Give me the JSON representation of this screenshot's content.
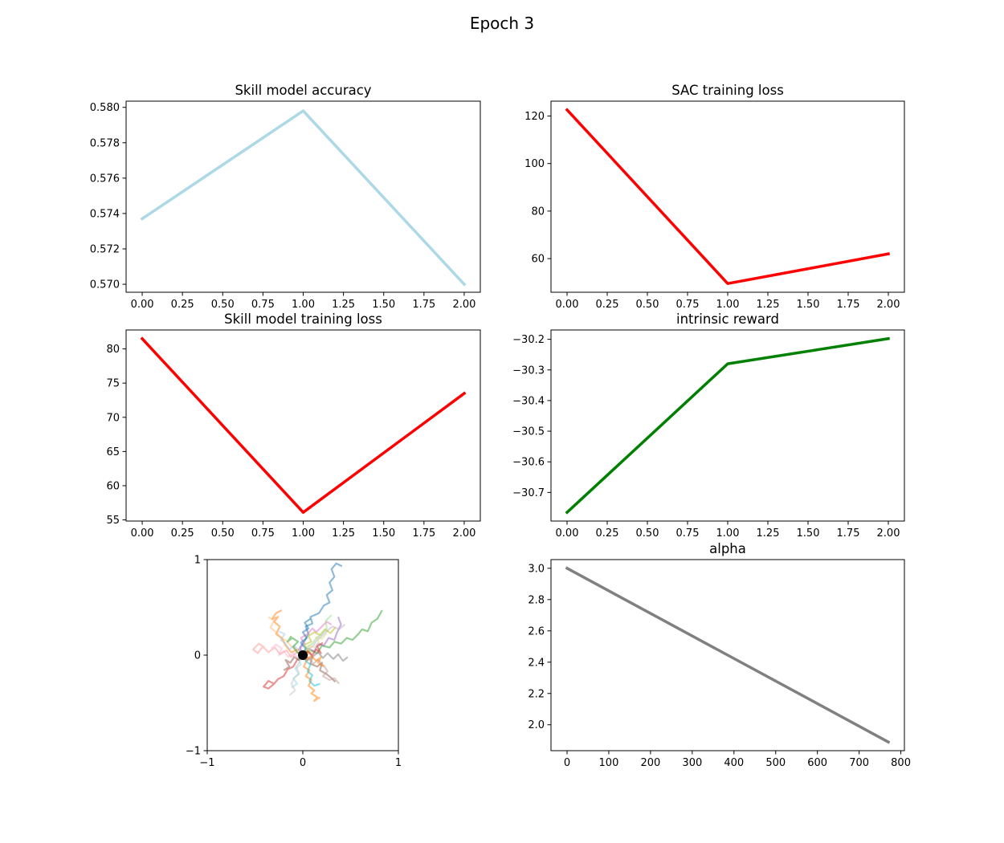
{
  "figure": {
    "suptitle": "Epoch 3"
  },
  "chart_data": [
    {
      "id": "skill-acc",
      "type": "line",
      "title": "Skill model accuracy",
      "xlabel": "",
      "ylabel": "",
      "x": [
        0,
        1,
        2
      ],
      "series": [
        {
          "values": [
            0.5737,
            0.5798,
            0.57
          ],
          "color": "#add8e6"
        }
      ],
      "xlim": [
        -0.1,
        2.1
      ],
      "ylim": [
        0.56955,
        0.58035
      ],
      "xticks": [
        0,
        0.25,
        0.5,
        0.75,
        1.0,
        1.25,
        1.5,
        1.75,
        2.0
      ],
      "xtick_labels": [
        "0.00",
        "0.25",
        "0.50",
        "0.75",
        "1.00",
        "1.25",
        "1.50",
        "1.75",
        "2.00"
      ],
      "yticks": [
        0.57,
        0.572,
        0.574,
        0.576,
        0.578,
        0.58
      ],
      "ytick_labels": [
        "0.570",
        "0.572",
        "0.574",
        "0.576",
        "0.578",
        "0.580"
      ],
      "grid": false
    },
    {
      "id": "sac-loss",
      "type": "line",
      "title": "SAC training loss",
      "xlabel": "",
      "ylabel": "",
      "x": [
        0,
        1,
        2
      ],
      "series": [
        {
          "values": [
            122.6,
            49.5,
            62.0
          ],
          "color": "#ff0000"
        }
      ],
      "xlim": [
        -0.1,
        2.1
      ],
      "ylim": [
        45.85,
        126.25
      ],
      "xticks": [
        0,
        0.25,
        0.5,
        0.75,
        1.0,
        1.25,
        1.5,
        1.75,
        2.0
      ],
      "xtick_labels": [
        "0.00",
        "0.25",
        "0.50",
        "0.75",
        "1.00",
        "1.25",
        "1.50",
        "1.75",
        "2.00"
      ],
      "yticks": [
        60,
        80,
        100,
        120
      ],
      "ytick_labels": [
        "60",
        "80",
        "100",
        "120"
      ],
      "grid": false
    },
    {
      "id": "skill-train-loss",
      "type": "line",
      "title": "Skill model training loss",
      "xlabel": "",
      "ylabel": "",
      "x": [
        0,
        1,
        2
      ],
      "series": [
        {
          "values": [
            81.5,
            56.1,
            73.5
          ],
          "color": "#ff0000"
        }
      ],
      "xlim": [
        -0.1,
        2.1
      ],
      "ylim": [
        54.83,
        82.77
      ],
      "xticks": [
        0,
        0.25,
        0.5,
        0.75,
        1.0,
        1.25,
        1.5,
        1.75,
        2.0
      ],
      "xtick_labels": [
        "0.00",
        "0.25",
        "0.50",
        "0.75",
        "1.00",
        "1.25",
        "1.50",
        "1.75",
        "2.00"
      ],
      "yticks": [
        55,
        60,
        65,
        70,
        75,
        80
      ],
      "ytick_labels": [
        "55",
        "60",
        "65",
        "70",
        "75",
        "80"
      ],
      "grid": false
    },
    {
      "id": "intrinsic-reward",
      "type": "line",
      "title": "intrinsic reward",
      "xlabel": "",
      "ylabel": "",
      "x": [
        0,
        1,
        2
      ],
      "series": [
        {
          "values": [
            -30.765,
            -30.28,
            -30.198
          ],
          "color": "#008000"
        }
      ],
      "xlim": [
        -0.1,
        2.1
      ],
      "ylim": [
        -30.7934,
        -30.1696
      ],
      "xticks": [
        0,
        0.25,
        0.5,
        0.75,
        1.0,
        1.25,
        1.5,
        1.75,
        2.0
      ],
      "xtick_labels": [
        "0.00",
        "0.25",
        "0.50",
        "0.75",
        "1.00",
        "1.25",
        "1.50",
        "1.75",
        "2.00"
      ],
      "yticks": [
        -30.7,
        -30.6,
        -30.5,
        -30.4,
        -30.3,
        -30.2
      ],
      "ytick_labels": [
        "−30.7",
        "−30.6",
        "−30.5",
        "−30.4",
        "−30.3",
        "−30.2"
      ],
      "grid": false
    },
    {
      "id": "trajectories",
      "type": "line",
      "title": "",
      "xlabel": "",
      "ylabel": "",
      "xlim": [
        -1,
        1
      ],
      "ylim": [
        -1,
        1
      ],
      "xticks": [
        -1,
        0,
        1
      ],
      "xtick_labels": [
        "−1",
        "0",
        "1"
      ],
      "yticks": [
        -1,
        0,
        1
      ],
      "ytick_labels": [
        "−1",
        "0",
        "1"
      ],
      "grid": false,
      "origin_marker": {
        "x": 0,
        "y": 0,
        "color": "#000000"
      },
      "series": [
        {
          "color": "#1f77b4",
          "x": [
            0,
            -0.03,
            0.02,
            0.06,
            0.03,
            0.1,
            0.08,
            0.17,
            0.22,
            0.28,
            0.25,
            0.31,
            0.28,
            0.33,
            0.3,
            0.35,
            0.41
          ],
          "y": [
            0,
            0.08,
            0.15,
            0.22,
            0.3,
            0.33,
            0.4,
            0.44,
            0.52,
            0.55,
            0.63,
            0.68,
            0.76,
            0.82,
            0.9,
            0.96,
            0.93
          ]
        },
        {
          "color": "#2ca02c",
          "x": [
            0,
            0.08,
            0.15,
            0.2,
            0.28,
            0.33,
            0.4,
            0.46,
            0.52,
            0.58,
            0.62,
            0.68,
            0.72,
            0.78,
            0.83
          ],
          "y": [
            0,
            0.05,
            0.02,
            0.1,
            0.08,
            0.14,
            0.12,
            0.18,
            0.16,
            0.22,
            0.27,
            0.25,
            0.34,
            0.38,
            0.47
          ]
        },
        {
          "color": "#ff7f0e",
          "x": [
            0,
            -0.05,
            -0.12,
            -0.18,
            -0.22,
            -0.28,
            -0.24,
            -0.3,
            -0.26,
            -0.32,
            -0.28,
            -0.22
          ],
          "y": [
            0,
            0.06,
            0.03,
            0.1,
            0.18,
            0.22,
            0.3,
            0.35,
            0.4,
            0.38,
            0.44,
            0.47
          ]
        },
        {
          "color": "#ff7f0e",
          "x": [
            0,
            0.04,
            0.01,
            0.07,
            0.03,
            0.09,
            0.06,
            0.12,
            0.09,
            0.15,
            0.12,
            0.18
          ],
          "y": [
            0,
            -0.06,
            -0.12,
            -0.16,
            -0.22,
            -0.26,
            -0.32,
            -0.37,
            -0.4,
            -0.44,
            -0.48,
            -0.44
          ]
        },
        {
          "color": "#d62728",
          "x": [
            0,
            -0.06,
            -0.1,
            -0.16,
            -0.2,
            -0.26,
            -0.3,
            -0.36,
            -0.41,
            -0.36,
            -0.3
          ],
          "y": [
            0,
            -0.05,
            -0.12,
            -0.15,
            -0.22,
            -0.25,
            -0.3,
            -0.27,
            -0.33,
            -0.35,
            -0.3
          ]
        },
        {
          "color": "#ff9896",
          "x": [
            0,
            -0.06,
            -0.12,
            -0.17,
            -0.24,
            -0.29,
            -0.36,
            -0.42,
            -0.47,
            -0.52,
            -0.46,
            -0.4
          ],
          "y": [
            0,
            0.03,
            -0.02,
            0.05,
            0.01,
            0.08,
            0.03,
            0.09,
            0.02,
            0.06,
            0.12,
            0.08
          ]
        },
        {
          "color": "#9467bd",
          "x": [
            0,
            0.06,
            0.12,
            0.16,
            0.22,
            0.27,
            0.33,
            0.36,
            0.4,
            0.37
          ],
          "y": [
            0,
            0.07,
            0.04,
            0.12,
            0.1,
            0.18,
            0.16,
            0.24,
            0.32,
            0.4
          ]
        },
        {
          "color": "#c5b0d5",
          "x": [
            0,
            0.05,
            0.11,
            0.15,
            0.21,
            0.26,
            0.31,
            0.38,
            0.44
          ],
          "y": [
            0,
            0.05,
            0.1,
            0.16,
            0.21,
            0.26,
            0.3,
            0.27,
            0.32
          ]
        },
        {
          "color": "#8c564b",
          "x": [
            0,
            0.05,
            0.1,
            0.08,
            0.15,
            0.2,
            0.18,
            0.25,
            0.3,
            0.34
          ],
          "y": [
            0,
            -0.05,
            -0.02,
            -0.09,
            -0.12,
            -0.08,
            -0.16,
            -0.2,
            -0.24,
            -0.28
          ]
        },
        {
          "color": "#e377c2",
          "x": [
            0,
            -0.04,
            0.02,
            -0.02,
            0.05,
            0.1,
            0.14,
            0.2,
            0.25,
            0.3
          ],
          "y": [
            0,
            0.06,
            0.12,
            0.18,
            0.22,
            0.28,
            0.24,
            0.3,
            0.35,
            0.32
          ]
        },
        {
          "color": "#7f7f7f",
          "x": [
            0,
            0.06,
            0.1,
            0.16,
            0.21,
            0.26,
            0.32,
            0.37,
            0.42,
            0.47
          ],
          "y": [
            0,
            0.04,
            -0.02,
            0.03,
            -0.03,
            0.02,
            -0.04,
            0.01,
            -0.06,
            -0.02
          ]
        },
        {
          "color": "#bcbd22",
          "x": [
            0,
            0.05,
            0.02,
            0.09,
            0.06,
            0.12,
            0.18,
            0.23,
            0.29,
            0.34
          ],
          "y": [
            0,
            0.05,
            0.11,
            0.14,
            0.2,
            0.24,
            0.21,
            0.27,
            0.23,
            0.29
          ]
        },
        {
          "color": "#98df8a",
          "x": [
            0,
            0.04,
            0.1,
            0.14,
            0.2,
            0.25,
            0.24,
            0.3
          ],
          "y": [
            0,
            0.08,
            0.12,
            0.18,
            0.22,
            0.28,
            0.36,
            0.42
          ]
        },
        {
          "color": "#ffbb78",
          "x": [
            0,
            -0.06,
            -0.12,
            -0.17,
            -0.23,
            -0.28,
            -0.34,
            -0.3,
            -0.36
          ],
          "y": [
            0,
            0.05,
            0.09,
            0.15,
            0.18,
            0.24,
            0.29,
            0.36,
            0.4
          ]
        },
        {
          "color": "#17becf",
          "x": [
            0,
            0.03,
            0.08,
            0.05,
            0.1,
            0.07,
            0.12,
            0.18
          ],
          "y": [
            0,
            -0.06,
            -0.1,
            -0.17,
            -0.21,
            -0.27,
            -0.32,
            -0.3
          ]
        },
        {
          "color": "#9edae5",
          "x": [
            0,
            -0.05,
            -0.02,
            -0.08,
            -0.04,
            -0.1,
            -0.06,
            -0.12
          ],
          "y": [
            0,
            -0.04,
            -0.1,
            -0.14,
            -0.2,
            -0.24,
            -0.3,
            -0.34
          ]
        },
        {
          "color": "#c49c94",
          "x": [
            0,
            0.06,
            0.11,
            0.16,
            0.22,
            0.26,
            0.21,
            0.28,
            0.33,
            0.38
          ],
          "y": [
            0,
            -0.03,
            -0.09,
            -0.05,
            -0.11,
            -0.17,
            -0.22,
            -0.26,
            -0.24,
            -0.3
          ]
        },
        {
          "color": "#f7b6d2",
          "x": [
            0,
            -0.05,
            -0.1,
            -0.15,
            -0.2,
            -0.25,
            -0.22,
            -0.28,
            -0.33
          ],
          "y": [
            0,
            -0.03,
            0.02,
            -0.02,
            0.04,
            0.0,
            0.07,
            0.11,
            0.07
          ]
        },
        {
          "color": "#c7c7c7",
          "x": [
            0,
            -0.03,
            -0.07,
            -0.04,
            -0.09,
            -0.12,
            -0.08,
            -0.14
          ],
          "y": [
            0,
            -0.07,
            -0.12,
            -0.19,
            -0.24,
            -0.3,
            -0.37,
            -0.42
          ]
        },
        {
          "color": "#dbdb8d",
          "x": [
            0,
            0.04,
            0.09,
            0.06,
            0.12,
            0.17,
            0.14,
            0.2,
            0.25
          ],
          "y": [
            0,
            0.06,
            0.03,
            0.1,
            0.08,
            0.13,
            0.19,
            0.17,
            0.23
          ]
        },
        {
          "color": "#aec7e8",
          "x": [
            0,
            -0.04,
            -0.09,
            -0.14,
            -0.18,
            -0.23,
            -0.19,
            -0.25
          ],
          "y": [
            0,
            0.05,
            0.1,
            0.06,
            0.12,
            0.16,
            0.22,
            0.25
          ]
        },
        {
          "color": "#1f77b4",
          "x": [
            0,
            0.03,
            -0.02,
            0.04,
            0.0,
            0.06,
            0.02,
            0.08
          ],
          "y": [
            0,
            0.07,
            0.13,
            0.18,
            0.24,
            0.28,
            0.34,
            0.38
          ]
        },
        {
          "color": "#d62728",
          "x": [
            0,
            0.05,
            0.1,
            0.14,
            0.19,
            0.15,
            0.21
          ],
          "y": [
            0,
            0.04,
            0.0,
            0.06,
            0.02,
            0.09,
            0.13
          ]
        },
        {
          "color": "#2ca02c",
          "x": [
            0,
            -0.06,
            -0.1,
            -0.05,
            -0.11,
            -0.16,
            -0.12
          ],
          "y": [
            0,
            0.03,
            0.09,
            0.14,
            0.18,
            0.14,
            0.2
          ]
        },
        {
          "color": "#8c564b",
          "x": [
            0,
            -0.04,
            -0.09,
            -0.13,
            -0.18,
            -0.14,
            -0.2
          ],
          "y": [
            0,
            -0.05,
            -0.02,
            -0.08,
            -0.05,
            -0.12,
            -0.16
          ]
        },
        {
          "color": "#ff7f0e",
          "x": [
            0,
            0.06,
            0.03,
            0.09,
            0.14,
            0.19,
            0.16,
            0.22
          ],
          "y": [
            0,
            0.03,
            -0.04,
            -0.01,
            -0.06,
            -0.02,
            -0.08,
            -0.12
          ]
        }
      ]
    },
    {
      "id": "alpha",
      "type": "line",
      "title": "alpha",
      "xlabel": "",
      "ylabel": "",
      "x": [
        0,
        770
      ],
      "series": [
        {
          "values": [
            3.0,
            1.89
          ],
          "color": "#808080"
        }
      ],
      "xlim": [
        -38.5,
        808.5
      ],
      "ylim": [
        1.8345,
        3.0555
      ],
      "xticks": [
        0,
        100,
        200,
        300,
        400,
        500,
        600,
        700,
        800
      ],
      "xtick_labels": [
        "0",
        "100",
        "200",
        "300",
        "400",
        "500",
        "600",
        "700",
        "800"
      ],
      "yticks": [
        2.0,
        2.2,
        2.4,
        2.6,
        2.8,
        3.0
      ],
      "ytick_labels": [
        "2.0",
        "2.2",
        "2.4",
        "2.6",
        "2.8",
        "3.0"
      ],
      "grid": false
    }
  ]
}
